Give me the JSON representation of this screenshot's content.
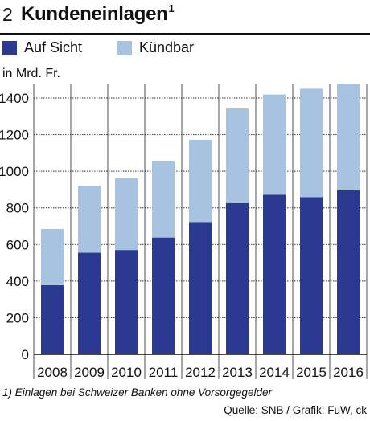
{
  "header": {
    "number": "2",
    "title": "Kundeneinlagen",
    "title_sup": "1"
  },
  "unit_label": "in Mrd. Fr.",
  "footnote": "1) Einlagen bei Schweizer Banken ohne Vorsorgegelder",
  "source": "Quelle: SNB / Grafik: FuW, ck",
  "chart_data": {
    "type": "bar",
    "stacked": true,
    "categories": [
      "2008",
      "2009",
      "2010",
      "2011",
      "2012",
      "2013",
      "2014",
      "2015",
      "2016"
    ],
    "series": [
      {
        "name": "Auf Sicht",
        "color": "#2b3990",
        "values": [
          378,
          555,
          570,
          638,
          723,
          826,
          872,
          858,
          896
        ]
      },
      {
        "name": "Kündbar",
        "color": "#a7c3df",
        "values": [
          307,
          367,
          392,
          417,
          449,
          517,
          547,
          593,
          581
        ]
      }
    ],
    "title": "Kundeneinlagen",
    "ylabel": "in Mrd. Fr.",
    "xlabel": "",
    "ylim": [
      0,
      1500
    ],
    "yticks": [
      0,
      200,
      400,
      600,
      800,
      1000,
      1200,
      1400
    ],
    "grid": true,
    "legend_position": "top-left"
  }
}
